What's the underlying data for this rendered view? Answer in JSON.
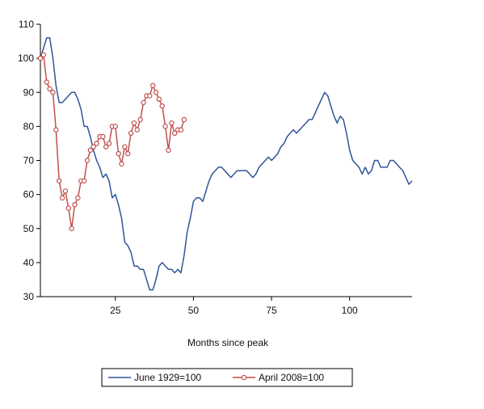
{
  "chart_data": {
    "type": "line",
    "title": "",
    "xlabel": "Months since peak",
    "ylabel": "",
    "xlim": [
      1,
      120
    ],
    "ylim": [
      30,
      110
    ],
    "xticks": [
      25,
      50,
      75,
      100
    ],
    "yticks": [
      30,
      40,
      50,
      60,
      70,
      80,
      90,
      100,
      110
    ],
    "grid": false,
    "legend_position": "bottom",
    "series": [
      {
        "name": "June 1929=100",
        "color": "#2f5597",
        "markers": false,
        "x": [
          1,
          2,
          3,
          4,
          5,
          6,
          7,
          8,
          9,
          10,
          11,
          12,
          13,
          14,
          15,
          16,
          17,
          18,
          19,
          20,
          21,
          22,
          23,
          24,
          25,
          26,
          27,
          28,
          29,
          30,
          31,
          32,
          33,
          34,
          35,
          36,
          37,
          38,
          39,
          40,
          41,
          42,
          43,
          44,
          45,
          46,
          47,
          48,
          49,
          50,
          51,
          52,
          53,
          54,
          55,
          56,
          57,
          58,
          59,
          60,
          61,
          62,
          63,
          64,
          65,
          66,
          67,
          68,
          69,
          70,
          71,
          72,
          73,
          74,
          75,
          76,
          77,
          78,
          79,
          80,
          81,
          82,
          83,
          84,
          85,
          86,
          87,
          88,
          89,
          90,
          91,
          92,
          93,
          94,
          95,
          96,
          97,
          98,
          99,
          100,
          101,
          102,
          103,
          104,
          105,
          106,
          107,
          108,
          109,
          110,
          111,
          112,
          113,
          114,
          115,
          116,
          117,
          118,
          119,
          120
        ],
        "values": [
          100,
          103,
          106,
          106,
          100,
          92,
          87,
          87,
          88,
          89,
          90,
          90,
          88,
          85,
          80,
          80,
          77,
          73,
          70,
          68,
          65,
          66,
          64,
          59,
          60,
          57,
          53,
          46,
          45,
          43,
          39,
          39,
          38,
          38,
          35,
          32,
          32,
          35,
          39,
          40,
          39,
          38,
          38,
          37,
          38,
          37,
          42,
          49,
          53,
          58,
          59,
          59,
          58,
          61,
          64,
          66,
          67,
          68,
          68,
          67,
          66,
          65,
          66,
          67,
          67,
          67,
          67,
          66,
          65,
          66,
          68,
          69,
          70,
          71,
          70,
          71,
          72,
          74,
          75,
          77,
          78,
          79,
          78,
          79,
          80,
          81,
          82,
          82,
          84,
          86,
          88,
          90,
          89,
          86,
          83,
          81,
          83,
          82,
          78,
          73,
          70,
          69,
          68,
          66,
          68,
          66,
          67,
          70,
          70,
          68,
          68,
          68,
          70,
          70,
          69,
          68,
          67,
          65,
          63,
          64
        ]
      },
      {
        "name": "April 2008=100",
        "color": "#c0504d",
        "markers": true,
        "x": [
          1,
          2,
          3,
          4,
          5,
          6,
          7,
          8,
          9,
          10,
          11,
          12,
          13,
          14,
          15,
          16,
          17,
          18,
          19,
          20,
          21,
          22,
          23,
          24,
          25,
          26,
          27,
          28,
          29,
          30,
          31,
          32,
          33,
          34,
          35,
          36,
          37,
          38,
          39,
          40,
          41,
          42,
          43,
          44,
          45,
          46,
          47
        ],
        "values": [
          100,
          101,
          93,
          91,
          90,
          79,
          64,
          59,
          61,
          56,
          50,
          57,
          59,
          64,
          64,
          70,
          73,
          74,
          75,
          77,
          77,
          74,
          75,
          80,
          80,
          72,
          69,
          74,
          72,
          78,
          81,
          79,
          82,
          87,
          89,
          89,
          92,
          90,
          88,
          86,
          80,
          73,
          81,
          78,
          79,
          79,
          82
        ]
      }
    ]
  }
}
